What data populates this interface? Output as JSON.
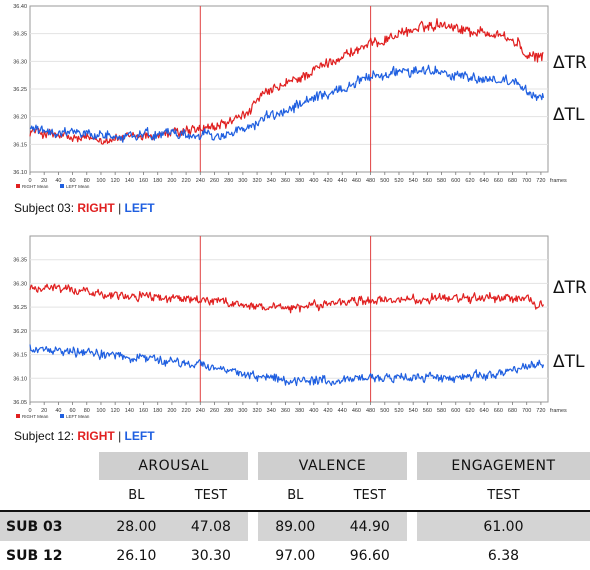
{
  "charts": [
    {
      "id": "subject03",
      "caption": {
        "prefix": "Subject 03:",
        "right": "RIGHT",
        "sep": "|",
        "left": "LEFT"
      },
      "delta_right": "ΔT",
      "delta_right_sub": "R",
      "delta_left": "ΔT",
      "delta_left_sub": "L"
    },
    {
      "id": "subject12",
      "caption": {
        "prefix": "Subject 12:",
        "right": "RIGHT",
        "sep": "|",
        "left": "LEFT"
      },
      "delta_right": "ΔT",
      "delta_right_sub": "R",
      "delta_left": "ΔT",
      "delta_left_sub": "L"
    }
  ],
  "chart_data": [
    {
      "type": "line",
      "xlabel": "frames",
      "xlim": [
        0,
        730
      ],
      "xticks": [
        0,
        20,
        40,
        60,
        80,
        100,
        120,
        140,
        160,
        180,
        200,
        220,
        240,
        260,
        280,
        300,
        320,
        340,
        360,
        380,
        400,
        420,
        440,
        460,
        480,
        500,
        520,
        540,
        560,
        580,
        600,
        620,
        640,
        660,
        680,
        700,
        720
      ],
      "ylim": [
        36.1,
        36.4
      ],
      "yticks": [
        "36.10",
        "36.15",
        "36.20",
        "36.25",
        "36.30",
        "36.35",
        "36.40"
      ],
      "markers_x": [
        240,
        480
      ],
      "legend": [
        "RIGHT Mean",
        "LEFT Mean"
      ],
      "colors": {
        "right": "#e02020",
        "left": "#1f5fe0",
        "marker": "#e04040"
      },
      "series": [
        {
          "name": "RIGHT Mean",
          "anchors": [
            [
              0,
              36.175
            ],
            [
              60,
              36.16
            ],
            [
              120,
              36.16
            ],
            [
              200,
              36.17
            ],
            [
              260,
              36.18
            ],
            [
              300,
              36.2
            ],
            [
              330,
              36.24
            ],
            [
              380,
              36.27
            ],
            [
              440,
              36.31
            ],
            [
              480,
              36.33
            ],
            [
              520,
              36.35
            ],
            [
              580,
              36.37
            ],
            [
              620,
              36.355
            ],
            [
              660,
              36.35
            ],
            [
              690,
              36.33
            ],
            [
              700,
              36.305
            ],
            [
              720,
              36.31
            ]
          ]
        },
        {
          "name": "LEFT Mean",
          "anchors": [
            [
              0,
              36.18
            ],
            [
              60,
              36.17
            ],
            [
              120,
              36.165
            ],
            [
              200,
              36.17
            ],
            [
              260,
              36.165
            ],
            [
              300,
              36.175
            ],
            [
              330,
              36.195
            ],
            [
              380,
              36.22
            ],
            [
              440,
              36.25
            ],
            [
              480,
              36.27
            ],
            [
              520,
              36.285
            ],
            [
              580,
              36.28
            ],
            [
              640,
              36.265
            ],
            [
              690,
              36.26
            ],
            [
              710,
              36.23
            ],
            [
              720,
              36.24
            ]
          ]
        }
      ]
    },
    {
      "type": "line",
      "xlabel": "frames",
      "xlim": [
        0,
        730
      ],
      "xticks": [
        0,
        20,
        40,
        60,
        80,
        100,
        120,
        140,
        160,
        180,
        200,
        220,
        240,
        260,
        280,
        300,
        320,
        340,
        360,
        380,
        400,
        420,
        440,
        460,
        480,
        500,
        520,
        540,
        560,
        580,
        600,
        620,
        640,
        660,
        680,
        700,
        720
      ],
      "ylim": [
        36.05,
        36.4
      ],
      "yticks": [
        "36.05",
        "36.10",
        "36.15",
        "36.20",
        "36.25",
        "36.30",
        "36.35"
      ],
      "markers_x": [
        240,
        480
      ],
      "legend": [
        "RIGHT Mean",
        "LEFT Mean"
      ],
      "colors": {
        "right": "#e02020",
        "left": "#1f5fe0",
        "marker": "#e04040"
      },
      "series": [
        {
          "name": "RIGHT Mean",
          "anchors": [
            [
              0,
              36.29
            ],
            [
              40,
              36.29
            ],
            [
              100,
              36.28
            ],
            [
              180,
              36.27
            ],
            [
              240,
              36.265
            ],
            [
              300,
              36.255
            ],
            [
              360,
              36.245
            ],
            [
              400,
              36.255
            ],
            [
              460,
              36.262
            ],
            [
              520,
              36.265
            ],
            [
              600,
              36.268
            ],
            [
              660,
              36.27
            ],
            [
              700,
              36.27
            ],
            [
              720,
              36.255
            ]
          ]
        },
        {
          "name": "LEFT Mean",
          "anchors": [
            [
              0,
              36.165
            ],
            [
              40,
              36.16
            ],
            [
              100,
              36.15
            ],
            [
              180,
              36.14
            ],
            [
              240,
              36.13
            ],
            [
              300,
              36.11
            ],
            [
              360,
              36.095
            ],
            [
              400,
              36.095
            ],
            [
              460,
              36.1
            ],
            [
              520,
              36.1
            ],
            [
              600,
              36.1
            ],
            [
              660,
              36.11
            ],
            [
              700,
              36.125
            ],
            [
              720,
              36.13
            ]
          ]
        }
      ]
    },
    {
      "type": "table",
      "groups": [
        "AROUSAL",
        "VALENCE",
        "ENGAGEMENT"
      ],
      "columns": [
        "BL",
        "TEST",
        "BL",
        "TEST",
        "TEST"
      ],
      "rows": [
        {
          "label": "SUB 03",
          "values": [
            "28.00",
            "47.08",
            "89.00",
            "44.90",
            "61.00"
          ]
        },
        {
          "label": "SUB 12",
          "values": [
            "26.10",
            "30.30",
            "97.00",
            "96.60",
            "6.38"
          ]
        }
      ]
    }
  ]
}
